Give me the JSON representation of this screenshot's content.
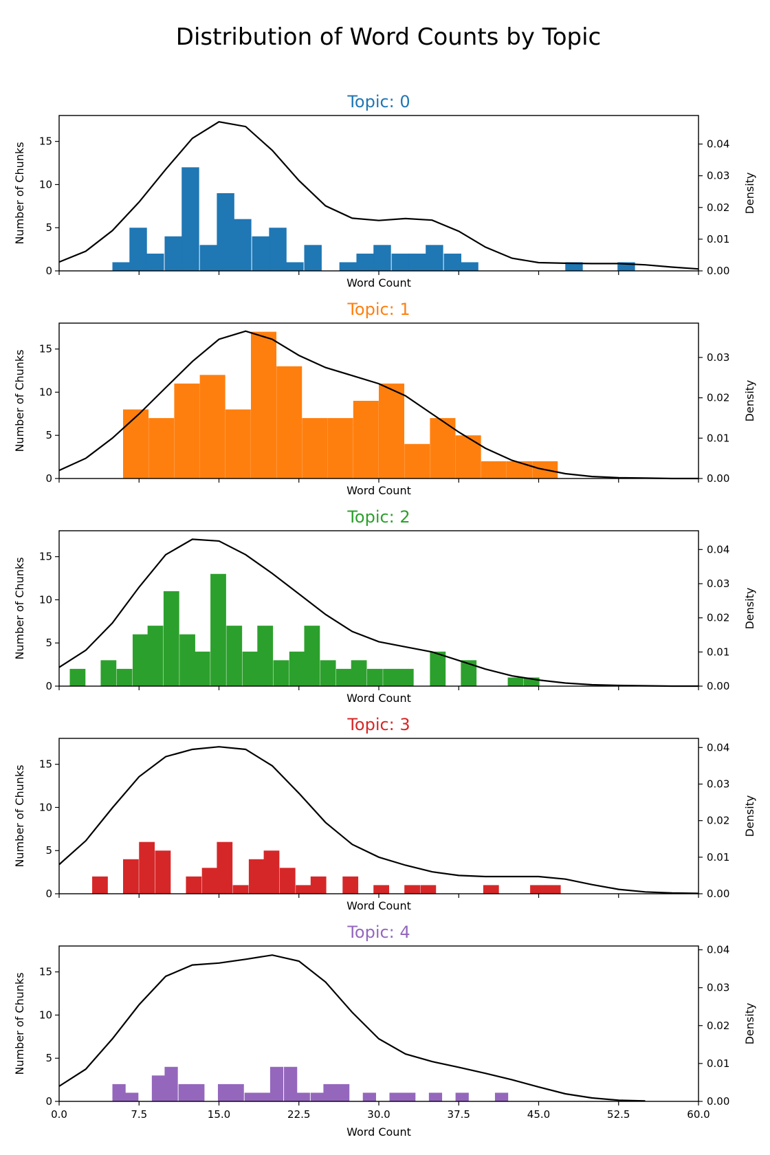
{
  "title": "Distribution of Word Counts by Topic",
  "chart_data": [
    {
      "type": "bar",
      "title": "Topic: 0",
      "color": "#1f77b4",
      "xlabel": "Word Count",
      "ylabel": "Number of Chunks",
      "y2label": "Density",
      "xlim": [
        0,
        60
      ],
      "ylim": [
        0,
        18
      ],
      "y2lim": [
        0,
        0.049
      ],
      "xticks": [],
      "yticks": [
        0,
        5,
        10,
        15
      ],
      "ytick_labels": [
        "0",
        "5",
        "10",
        "15"
      ],
      "y2ticks": [
        0,
        0.01,
        0.02,
        0.03,
        0.04
      ],
      "y2tick_labels": [
        "0.00",
        "0.01",
        "0.02",
        "0.03",
        "0.04"
      ],
      "bin_width": 1.64,
      "bins": [
        {
          "start": 5.0,
          "count": 1
        },
        {
          "start": 6.6,
          "count": 5
        },
        {
          "start": 8.2,
          "count": 2
        },
        {
          "start": 9.9,
          "count": 4
        },
        {
          "start": 11.5,
          "count": 12
        },
        {
          "start": 13.2,
          "count": 3
        },
        {
          "start": 14.8,
          "count": 9
        },
        {
          "start": 16.4,
          "count": 6
        },
        {
          "start": 18.1,
          "count": 4
        },
        {
          "start": 19.7,
          "count": 5
        },
        {
          "start": 21.3,
          "count": 1
        },
        {
          "start": 23.0,
          "count": 3
        },
        {
          "start": 26.3,
          "count": 1
        },
        {
          "start": 27.9,
          "count": 2
        },
        {
          "start": 29.5,
          "count": 3
        },
        {
          "start": 31.2,
          "count": 2
        },
        {
          "start": 32.8,
          "count": 2
        },
        {
          "start": 34.4,
          "count": 3
        },
        {
          "start": 36.1,
          "count": 2
        },
        {
          "start": 37.7,
          "count": 1
        },
        {
          "start": 47.5,
          "count": 1
        },
        {
          "start": 52.4,
          "count": 1
        }
      ],
      "kde": {
        "x": [
          0,
          2.5,
          5,
          7.5,
          10,
          12.5,
          15,
          17.5,
          20,
          22.5,
          25,
          27.5,
          30,
          32.5,
          35,
          37.5,
          40,
          42.5,
          45,
          47.5,
          50,
          52.5,
          55,
          57.5,
          60
        ],
        "y": [
          0.0028,
          0.0062,
          0.0127,
          0.0217,
          0.032,
          0.0418,
          0.047,
          0.0455,
          0.038,
          0.0285,
          0.0205,
          0.0166,
          0.0159,
          0.0165,
          0.016,
          0.0125,
          0.0075,
          0.004,
          0.0026,
          0.0024,
          0.0023,
          0.0023,
          0.0019,
          0.0012,
          0.0006
        ]
      }
    },
    {
      "type": "bar",
      "title": "Topic: 1",
      "color": "#ff7f0e",
      "xlabel": "Word Count",
      "ylabel": "Number of Chunks",
      "y2label": "Density",
      "xlim": [
        0,
        60
      ],
      "ylim": [
        0,
        18
      ],
      "y2lim": [
        0,
        0.0385
      ],
      "xticks": [],
      "yticks": [
        0,
        5,
        10,
        15
      ],
      "ytick_labels": [
        "0",
        "5",
        "10",
        "15"
      ],
      "y2ticks": [
        0,
        0.01,
        0.02,
        0.03
      ],
      "y2tick_labels": [
        "0.00",
        "0.01",
        "0.02",
        "0.03"
      ],
      "bin_width": 2.39,
      "bins": [
        {
          "start": 6.0,
          "count": 8
        },
        {
          "start": 8.4,
          "count": 7
        },
        {
          "start": 10.8,
          "count": 11
        },
        {
          "start": 13.2,
          "count": 12
        },
        {
          "start": 15.6,
          "count": 8
        },
        {
          "start": 18.0,
          "count": 17
        },
        {
          "start": 20.4,
          "count": 13
        },
        {
          "start": 22.8,
          "count": 7
        },
        {
          "start": 25.2,
          "count": 7
        },
        {
          "start": 27.6,
          "count": 9
        },
        {
          "start": 30.0,
          "count": 11
        },
        {
          "start": 32.4,
          "count": 4
        },
        {
          "start": 34.8,
          "count": 7
        },
        {
          "start": 37.2,
          "count": 5
        },
        {
          "start": 39.6,
          "count": 2
        },
        {
          "start": 42.0,
          "count": 2
        },
        {
          "start": 44.4,
          "count": 2
        }
      ],
      "kde": {
        "x": [
          0,
          2.5,
          5,
          7.5,
          10,
          12.5,
          15,
          17.5,
          20,
          22.5,
          25,
          27.5,
          30,
          32.5,
          35,
          37.5,
          40,
          42.5,
          45,
          47.5,
          50,
          52.5,
          55,
          57.5,
          60
        ],
        "y": [
          0.002,
          0.005,
          0.01,
          0.016,
          0.0225,
          0.029,
          0.0345,
          0.0365,
          0.0345,
          0.0305,
          0.0275,
          0.0255,
          0.0235,
          0.0205,
          0.016,
          0.0115,
          0.0075,
          0.0045,
          0.0025,
          0.0012,
          0.0005,
          0.0002,
          0.0001,
          0.0,
          0.0
        ]
      }
    },
    {
      "type": "bar",
      "title": "Topic: 2",
      "color": "#2ca02c",
      "xlabel": "Word Count",
      "ylabel": "Number of Chunks",
      "y2label": "Density",
      "xlim": [
        0,
        60
      ],
      "ylim": [
        0,
        18
      ],
      "y2lim": [
        0,
        0.0455
      ],
      "xticks": [],
      "yticks": [
        0,
        5,
        10,
        15
      ],
      "ytick_labels": [
        "0",
        "5",
        "10",
        "15"
      ],
      "y2ticks": [
        0,
        0.01,
        0.02,
        0.03,
        0.04
      ],
      "y2tick_labels": [
        "0.00",
        "0.01",
        "0.02",
        "0.03",
        "0.04"
      ],
      "bin_width": 1.47,
      "bins": [
        {
          "start": 1.0,
          "count": 2
        },
        {
          "start": 3.9,
          "count": 3
        },
        {
          "start": 5.4,
          "count": 2
        },
        {
          "start": 6.9,
          "count": 6
        },
        {
          "start": 8.3,
          "count": 7
        },
        {
          "start": 9.8,
          "count": 11
        },
        {
          "start": 11.3,
          "count": 6
        },
        {
          "start": 12.7,
          "count": 4
        },
        {
          "start": 14.2,
          "count": 13
        },
        {
          "start": 15.7,
          "count": 7
        },
        {
          "start": 17.2,
          "count": 4
        },
        {
          "start": 18.6,
          "count": 7
        },
        {
          "start": 20.1,
          "count": 3
        },
        {
          "start": 21.6,
          "count": 4
        },
        {
          "start": 23.0,
          "count": 7
        },
        {
          "start": 24.5,
          "count": 3
        },
        {
          "start": 26.0,
          "count": 2
        },
        {
          "start": 27.4,
          "count": 3
        },
        {
          "start": 28.9,
          "count": 2
        },
        {
          "start": 30.4,
          "count": 2
        },
        {
          "start": 31.8,
          "count": 2
        },
        {
          "start": 34.8,
          "count": 4
        },
        {
          "start": 37.7,
          "count": 3
        },
        {
          "start": 42.1,
          "count": 1
        },
        {
          "start": 43.6,
          "count": 1
        }
      ],
      "kde": {
        "x": [
          0,
          2.5,
          5,
          7.5,
          10,
          12.5,
          15,
          17.5,
          20,
          22.5,
          25,
          27.5,
          30,
          32.5,
          35,
          37.5,
          40,
          42.5,
          45,
          47.5,
          50,
          52.5,
          55,
          57.5,
          60
        ],
        "y": [
          0.0055,
          0.0105,
          0.0185,
          0.029,
          0.0385,
          0.043,
          0.0425,
          0.0385,
          0.033,
          0.027,
          0.021,
          0.016,
          0.013,
          0.0115,
          0.01,
          0.0075,
          0.005,
          0.003,
          0.0018,
          0.0009,
          0.0004,
          0.0002,
          0.0001,
          0.0,
          0.0
        ]
      }
    },
    {
      "type": "bar",
      "title": "Topic: 3",
      "color": "#d62728",
      "xlabel": "Word Count",
      "ylabel": "Number of Chunks",
      "y2label": "Density",
      "xlim": [
        0,
        60
      ],
      "ylim": [
        0,
        18
      ],
      "y2lim": [
        0,
        0.0425
      ],
      "xticks": [],
      "yticks": [
        0,
        5,
        10,
        15
      ],
      "ytick_labels": [
        "0",
        "5",
        "10",
        "15"
      ],
      "y2ticks": [
        0,
        0.01,
        0.02,
        0.03,
        0.04
      ],
      "y2tick_labels": [
        "0.00",
        "0.01",
        "0.02",
        "0.03",
        "0.04"
      ],
      "bin_width": 1.47,
      "bins": [
        {
          "start": 3.1,
          "count": 2
        },
        {
          "start": 6.0,
          "count": 4
        },
        {
          "start": 7.5,
          "count": 6
        },
        {
          "start": 9.0,
          "count": 5
        },
        {
          "start": 11.9,
          "count": 2
        },
        {
          "start": 13.4,
          "count": 3
        },
        {
          "start": 14.8,
          "count": 6
        },
        {
          "start": 16.3,
          "count": 1
        },
        {
          "start": 17.8,
          "count": 4
        },
        {
          "start": 19.2,
          "count": 5
        },
        {
          "start": 20.7,
          "count": 3
        },
        {
          "start": 22.2,
          "count": 1
        },
        {
          "start": 23.6,
          "count": 2
        },
        {
          "start": 26.6,
          "count": 2
        },
        {
          "start": 29.5,
          "count": 1
        },
        {
          "start": 32.4,
          "count": 1
        },
        {
          "start": 33.9,
          "count": 1
        },
        {
          "start": 39.8,
          "count": 1
        },
        {
          "start": 44.2,
          "count": 1
        },
        {
          "start": 45.6,
          "count": 1
        }
      ],
      "kde": {
        "x": [
          0,
          2.5,
          5,
          7.5,
          10,
          12.5,
          15,
          17.5,
          20,
          22.5,
          25,
          27.5,
          30,
          32.5,
          35,
          37.5,
          40,
          42.5,
          45,
          47.5,
          50,
          52.5,
          55,
          57.5,
          60
        ],
        "y": [
          0.008,
          0.0145,
          0.0235,
          0.032,
          0.0375,
          0.0395,
          0.0402,
          0.0395,
          0.035,
          0.0275,
          0.0195,
          0.0135,
          0.01,
          0.0078,
          0.006,
          0.005,
          0.0047,
          0.0047,
          0.0047,
          0.004,
          0.0025,
          0.0012,
          0.0005,
          0.0002,
          0.0001
        ]
      }
    },
    {
      "type": "bar",
      "title": "Topic: 4",
      "color": "#9467bd",
      "xlabel": "Word Count",
      "ylabel": "Number of Chunks",
      "y2label": "Density",
      "xlim": [
        0,
        60
      ],
      "ylim": [
        0,
        18
      ],
      "y2lim": [
        0,
        0.041
      ],
      "xticks": [
        0,
        7.5,
        15,
        22.5,
        30,
        37.5,
        45,
        52.5,
        60
      ],
      "xtick_labels": [
        "0.0",
        "7.5",
        "15.0",
        "22.5",
        "30.0",
        "37.5",
        "45.0",
        "52.5",
        "60.0"
      ],
      "yticks": [
        0,
        5,
        10,
        15
      ],
      "ytick_labels": [
        "0",
        "5",
        "10",
        "15"
      ],
      "y2ticks": [
        0,
        0.01,
        0.02,
        0.03,
        0.04
      ],
      "y2tick_labels": [
        "0.00",
        "0.01",
        "0.02",
        "0.03",
        "0.04"
      ],
      "bin_width": 1.24,
      "bins": [
        {
          "start": 5.0,
          "count": 2
        },
        {
          "start": 6.2,
          "count": 1
        },
        {
          "start": 8.7,
          "count": 3
        },
        {
          "start": 9.9,
          "count": 4
        },
        {
          "start": 11.2,
          "count": 2
        },
        {
          "start": 12.4,
          "count": 2
        },
        {
          "start": 14.9,
          "count": 2
        },
        {
          "start": 16.1,
          "count": 2
        },
        {
          "start": 17.4,
          "count": 1
        },
        {
          "start": 18.6,
          "count": 1
        },
        {
          "start": 19.8,
          "count": 4
        },
        {
          "start": 21.1,
          "count": 4
        },
        {
          "start": 22.3,
          "count": 1
        },
        {
          "start": 23.6,
          "count": 1
        },
        {
          "start": 24.8,
          "count": 2
        },
        {
          "start": 26.0,
          "count": 2
        },
        {
          "start": 28.5,
          "count": 1
        },
        {
          "start": 31.0,
          "count": 1
        },
        {
          "start": 32.2,
          "count": 1
        },
        {
          "start": 34.7,
          "count": 1
        },
        {
          "start": 37.2,
          "count": 1
        },
        {
          "start": 40.9,
          "count": 1
        }
      ],
      "kde": {
        "x": [
          0,
          2.5,
          5,
          7.5,
          10,
          12.5,
          15,
          17.5,
          20,
          22.5,
          25,
          27.5,
          30,
          32.5,
          35,
          37.5,
          40,
          42.5,
          45,
          47.5,
          50,
          52.5,
          55
        ],
        "y": [
          0.004,
          0.0085,
          0.0165,
          0.0255,
          0.033,
          0.036,
          0.0365,
          0.0375,
          0.0386,
          0.037,
          0.0315,
          0.0235,
          0.0165,
          0.0125,
          0.0105,
          0.009,
          0.0074,
          0.0057,
          0.0038,
          0.002,
          0.0009,
          0.0003,
          0.0001
        ]
      }
    }
  ]
}
